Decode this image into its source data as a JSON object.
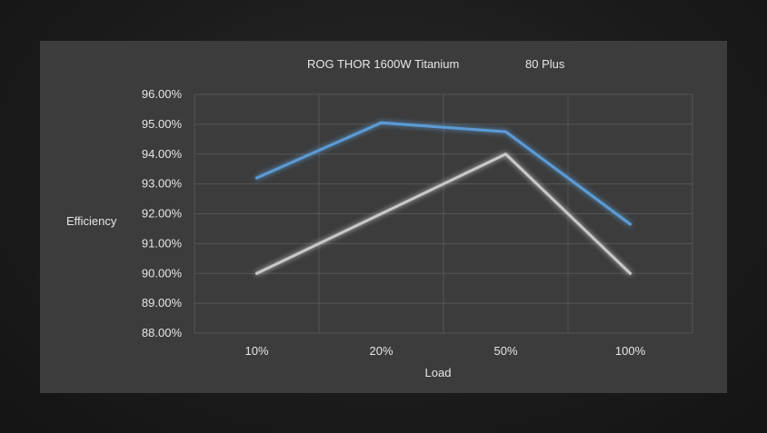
{
  "chart_data": {
    "type": "line",
    "categories": [
      "10%",
      "20%",
      "50%",
      "100%"
    ],
    "series": [
      {
        "name": "ROG THOR 1600W Titanium",
        "values": [
          93.2,
          95.05,
          94.75,
          91.65
        ],
        "color": "#5b9bd5"
      },
      {
        "name": "80 Plus",
        "values": [
          90.0,
          92.0,
          94.0,
          90.0
        ],
        "color": "#c8c8c8"
      }
    ],
    "xlabel": "Load",
    "ylabel": "Efficiency",
    "ylim": [
      88,
      96
    ],
    "yticks": [
      "88.00%",
      "89.00%",
      "90.00%",
      "91.00%",
      "92.00%",
      "93.00%",
      "94.00%",
      "95.00%",
      "96.00%"
    ],
    "grid": true,
    "legend_position": "top"
  }
}
